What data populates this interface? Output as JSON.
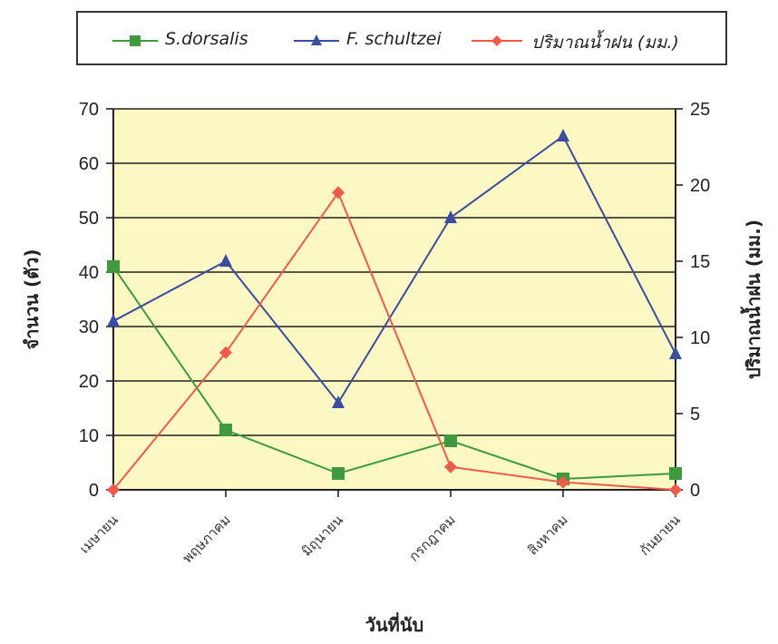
{
  "chart_data": {
    "type": "line",
    "categories": [
      "เมษายน",
      "พฤษภาคม",
      "มิถุนายน",
      "กรกฎาคม",
      "สิงหาคม",
      "กันยายน"
    ],
    "xlabel": "วันที่นับ",
    "ylabel": "จำนวน (ตัว)",
    "y2label": "ปริมาณน้ำฝน (มม.)",
    "ylim": [
      0,
      70
    ],
    "y2lim": [
      0,
      25
    ],
    "yticks": [
      0,
      10,
      20,
      30,
      40,
      50,
      60,
      70
    ],
    "y2ticks": [
      0,
      5,
      10,
      15,
      20,
      25
    ],
    "legend_position": "top",
    "grid": true,
    "plot_background": "#fbf8c4",
    "series": [
      {
        "name": "S.dorsalis",
        "axis": "left",
        "color": "#3f9a3f",
        "marker": "square",
        "values": [
          41,
          11,
          3,
          9,
          2,
          3
        ]
      },
      {
        "name": "F. schultzei",
        "axis": "left",
        "color": "#3b4da0",
        "marker": "triangle",
        "values": [
          31,
          42,
          16,
          50,
          65,
          25
        ]
      },
      {
        "name": "ปริมาณน้ำฝน (มม.)",
        "axis": "right",
        "color": "#f05a4a",
        "marker": "diamond",
        "values": [
          0,
          9,
          19.5,
          1.5,
          0.5,
          0
        ]
      }
    ]
  }
}
